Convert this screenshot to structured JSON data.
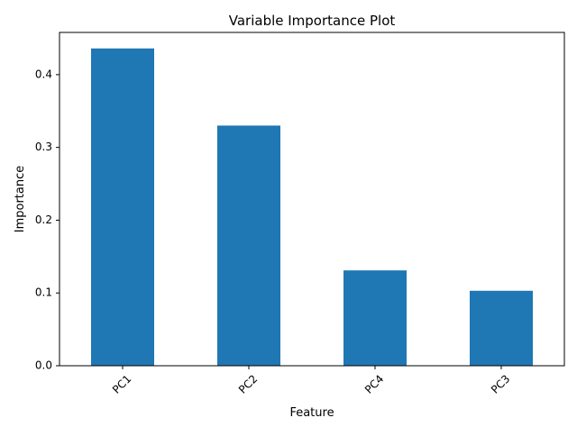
{
  "chart_data": {
    "type": "bar",
    "title": "Variable Importance Plot",
    "xlabel": "Feature",
    "ylabel": "Importance",
    "categories": [
      "PC1",
      "PC2",
      "PC4",
      "PC3"
    ],
    "values": [
      0.436,
      0.33,
      0.131,
      0.103
    ],
    "ylim": [
      0,
      0.458
    ],
    "yticks": [
      0.0,
      0.1,
      0.2,
      0.3,
      0.4
    ],
    "ytick_labels": [
      "0.0",
      "0.1",
      "0.2",
      "0.3",
      "0.4"
    ],
    "bar_color": "#1f77b4",
    "grid": false,
    "legend": false,
    "xtick_rotation_deg": 45
  }
}
